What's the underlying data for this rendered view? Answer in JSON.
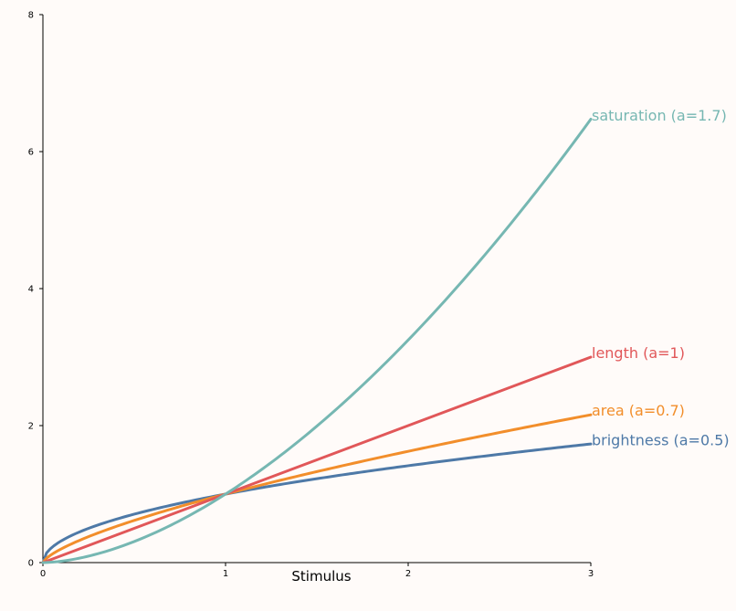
{
  "chart_data": {
    "type": "line",
    "xlabel": "Stimulus",
    "ylabel": "",
    "xlim": [
      0,
      3
    ],
    "ylim": [
      0,
      8
    ],
    "x_ticks": [
      0,
      1,
      2,
      3
    ],
    "y_ticks": [
      0,
      2,
      4,
      6,
      8
    ],
    "grid": false,
    "legend": "direct labels at line ends",
    "x": [
      0,
      0.1,
      0.25,
      0.5,
      0.75,
      1,
      1.25,
      1.5,
      1.75,
      2,
      2.25,
      2.5,
      2.75,
      3
    ],
    "series": [
      {
        "name": "brightness (a=0.5)",
        "exponent": 0.5,
        "color": "#4e79a7",
        "values": [
          0,
          0.32,
          0.5,
          0.71,
          0.87,
          1,
          1.12,
          1.22,
          1.32,
          1.41,
          1.5,
          1.58,
          1.66,
          1.73
        ]
      },
      {
        "name": "area (a=0.7)",
        "exponent": 0.7,
        "color": "#f28e2b",
        "values": [
          0,
          0.2,
          0.38,
          0.62,
          0.82,
          1,
          1.17,
          1.33,
          1.48,
          1.62,
          1.76,
          1.9,
          2.03,
          2.16
        ]
      },
      {
        "name": "length (a=1)",
        "exponent": 1,
        "color": "#e15759",
        "values": [
          0,
          0.1,
          0.25,
          0.5,
          0.75,
          1,
          1.25,
          1.5,
          1.75,
          2,
          2.25,
          2.5,
          2.75,
          3
        ]
      },
      {
        "name": "saturation (a=1.7)",
        "exponent": 1.7,
        "color": "#76b7b2",
        "values": [
          0,
          0.02,
          0.09,
          0.31,
          0.61,
          1,
          1.46,
          1.99,
          2.59,
          3.25,
          3.97,
          4.75,
          5.58,
          6.47
        ]
      }
    ]
  }
}
